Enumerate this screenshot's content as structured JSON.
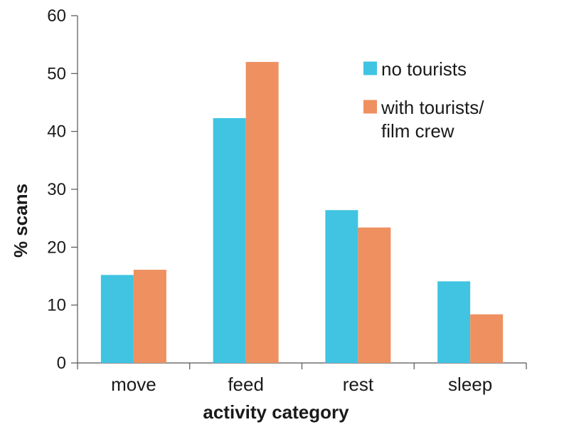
{
  "chart_data": {
    "type": "bar",
    "categories": [
      "move",
      "feed",
      "rest",
      "sleep"
    ],
    "series": [
      {
        "name": "no tourists",
        "color": "#40c4e2",
        "values": [
          15.2,
          42.3,
          26.4,
          14.1
        ]
      },
      {
        "name": "with tourists/ film crew",
        "color": "#ee9060",
        "values": [
          16.1,
          52.0,
          23.4,
          8.4
        ]
      }
    ],
    "legend_lines": [
      [
        "no tourists"
      ],
      [
        "with tourists/",
        "film crew"
      ]
    ],
    "xlabel": "activity category",
    "ylabel": "% scans",
    "ylim": [
      0,
      60
    ],
    "yticks": [
      0,
      10,
      20,
      30,
      40,
      50,
      60
    ],
    "grid": false,
    "legend_position": "top-right"
  }
}
